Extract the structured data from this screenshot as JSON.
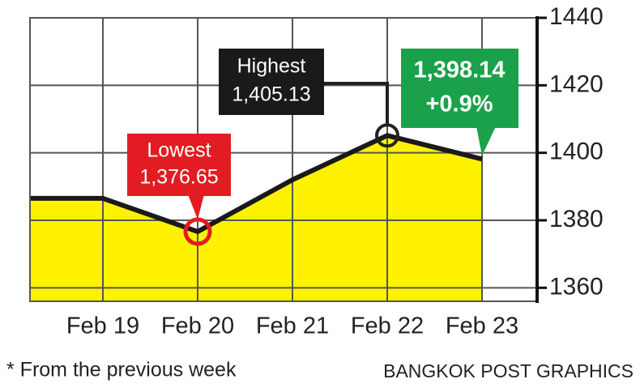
{
  "chart_data": {
    "type": "area",
    "categories": [
      null,
      "Feb 19",
      "Feb 20",
      "Feb 21",
      "Feb 22",
      "Feb 23"
    ],
    "values": [
      1386.5,
      1386.5,
      1376.65,
      1392,
      1405.13,
      1398.14
    ],
    "value_labels": [
      null,
      null,
      "1,376.65",
      null,
      "1,405.13",
      "1,398.14"
    ],
    "annotations": [
      "Lowest",
      "Highest",
      "+0.9%"
    ],
    "color": "#fff200",
    "line_color": "#1a1a1a",
    "ylim": [
      1356,
      1440
    ],
    "yticks": [
      1360,
      1380,
      1400,
      1420,
      1440
    ],
    "grid": true,
    "footnote": "* From the previous week",
    "source": "BANGKOK POST GRAPHICS"
  }
}
